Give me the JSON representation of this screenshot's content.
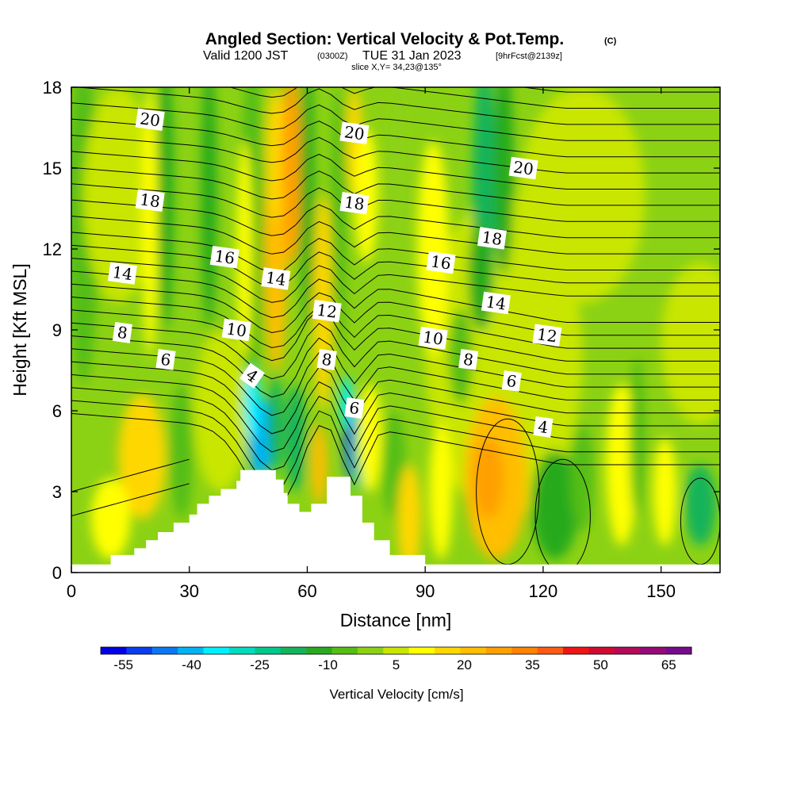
{
  "title": {
    "main": "Angled Section: Vertical Velocity & Pot.Temp.",
    "units": "(C)",
    "valid_prefix": "Valid 1200 JST",
    "valid_z": "(0300Z)",
    "valid_date": "TUE 31 Jan 2023",
    "forecast": "[9hrFcst@2139z]",
    "slice": "slice X,Y= 34,23@135°"
  },
  "colors": {
    "terrain": "#ffffff",
    "contour": "#000000",
    "scale": [
      "#0000e6",
      "#0a3cf0",
      "#0a78f5",
      "#00b4f5",
      "#00f0ff",
      "#00dcbe",
      "#00c88c",
      "#14b45a",
      "#28aa1e",
      "#55be14",
      "#8cd214",
      "#c8e600",
      "#ffff00",
      "#ffd700",
      "#ffbe00",
      "#ffa000",
      "#ff8200",
      "#ff5a14",
      "#f01414",
      "#d20a32",
      "#b40a5a",
      "#960a78",
      "#780a8c"
    ]
  },
  "chart_data": {
    "type": "heatmap",
    "xlabel": "Distance [nm]",
    "ylabel": "Height [Kft MSL]",
    "xlim": [
      0,
      165
    ],
    "ylim": [
      0,
      18
    ],
    "xticks": [
      0,
      30,
      60,
      90,
      120,
      150
    ],
    "yticks": [
      0,
      3,
      6,
      9,
      12,
      15,
      18
    ],
    "colorbar": {
      "label": "Vertical Velocity [cm/s]",
      "ticks": [
        -55,
        -40,
        -25,
        -10,
        5,
        20,
        35,
        50,
        65
      ],
      "range": [
        -60,
        70
      ]
    },
    "terrain_profile": [
      [
        0,
        0.3
      ],
      [
        10,
        0.3
      ],
      [
        10,
        0.65
      ],
      [
        16,
        0.65
      ],
      [
        16,
        0.9
      ],
      [
        19,
        0.9
      ],
      [
        19,
        1.2
      ],
      [
        22,
        1.2
      ],
      [
        22,
        1.5
      ],
      [
        26,
        1.5
      ],
      [
        26,
        1.85
      ],
      [
        30,
        1.85
      ],
      [
        30,
        2.15
      ],
      [
        32,
        2.15
      ],
      [
        32,
        2.55
      ],
      [
        35,
        2.55
      ],
      [
        35,
        2.85
      ],
      [
        38,
        2.85
      ],
      [
        38,
        3.1
      ],
      [
        42,
        3.1
      ],
      [
        42,
        3.4
      ],
      [
        43,
        3.4
      ],
      [
        43,
        3.8
      ],
      [
        52,
        3.8
      ],
      [
        52,
        3.45
      ],
      [
        54,
        3.45
      ],
      [
        54,
        2.95
      ],
      [
        55,
        2.95
      ],
      [
        55,
        2.55
      ],
      [
        58,
        2.55
      ],
      [
        58,
        2.25
      ],
      [
        61,
        2.25
      ],
      [
        61,
        2.55
      ],
      [
        65,
        2.55
      ],
      [
        65,
        3.55
      ],
      [
        71,
        3.55
      ],
      [
        71,
        2.85
      ],
      [
        74,
        2.85
      ],
      [
        74,
        1.85
      ],
      [
        77,
        1.85
      ],
      [
        77,
        1.2
      ],
      [
        81,
        1.2
      ],
      [
        81,
        0.65
      ],
      [
        90,
        0.65
      ],
      [
        90,
        0.3
      ],
      [
        165,
        0.3
      ]
    ],
    "theta_labels": [
      {
        "text": "20",
        "x": 20,
        "y": 16.8
      },
      {
        "text": "20",
        "x": 72,
        "y": 16.3
      },
      {
        "text": "20",
        "x": 115,
        "y": 15.0
      },
      {
        "text": "18",
        "x": 20,
        "y": 13.8
      },
      {
        "text": "18",
        "x": 72,
        "y": 13.7
      },
      {
        "text": "18",
        "x": 107,
        "y": 12.4
      },
      {
        "text": "16",
        "x": 39,
        "y": 11.7
      },
      {
        "text": "16",
        "x": 94,
        "y": 11.5
      },
      {
        "text": "14",
        "x": 13,
        "y": 11.1
      },
      {
        "text": "14",
        "x": 52,
        "y": 10.9
      },
      {
        "text": "14",
        "x": 108,
        "y": 10.0
      },
      {
        "text": "12",
        "x": 65,
        "y": 9.7
      },
      {
        "text": "12",
        "x": 121,
        "y": 8.8
      },
      {
        "text": "10",
        "x": 42,
        "y": 9.0
      },
      {
        "text": "10",
        "x": 92,
        "y": 8.7
      },
      {
        "text": "8",
        "x": 13,
        "y": 8.9
      },
      {
        "text": "8",
        "x": 65,
        "y": 7.9
      },
      {
        "text": "8",
        "x": 101,
        "y": 7.9
      },
      {
        "text": "6",
        "x": 24,
        "y": 7.9
      },
      {
        "text": "6",
        "x": 72,
        "y": 6.1
      },
      {
        "text": "6",
        "x": 112,
        "y": 7.1
      },
      {
        "text": "4",
        "x": 46,
        "y": 7.3
      },
      {
        "text": "4",
        "x": 120,
        "y": 5.4
      }
    ]
  }
}
